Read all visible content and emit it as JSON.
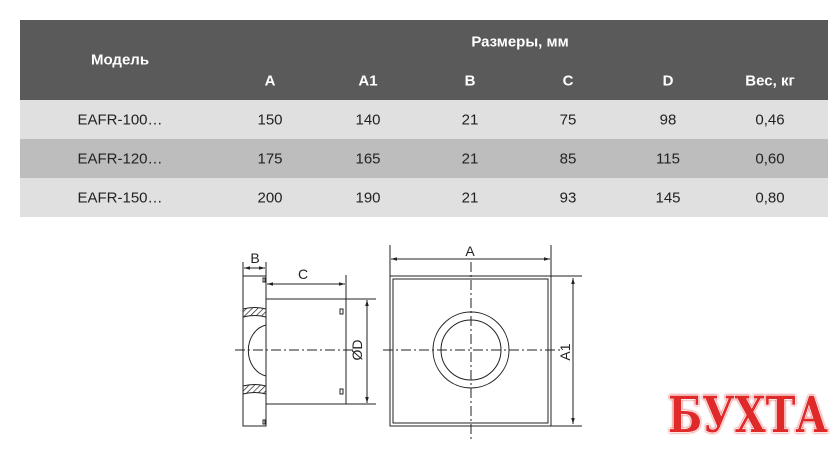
{
  "table": {
    "header": {
      "model": "Модель",
      "group": "Размеры, мм",
      "cols": [
        "A",
        "A1",
        "B",
        "C",
        "D",
        "Вес, кг"
      ]
    },
    "rows": [
      [
        "EAFR-100…",
        "150",
        "140",
        "21",
        "75",
        "98",
        "0,46"
      ],
      [
        "EAFR-120…",
        "175",
        "165",
        "21",
        "85",
        "115",
        "0,60"
      ],
      [
        "EAFR-150…",
        "200",
        "190",
        "21",
        "93",
        "145",
        "0,80"
      ]
    ]
  },
  "drawing": {
    "labels": {
      "b": "B",
      "c": "C",
      "d": "ØD",
      "a": "A",
      "a1": "A1"
    }
  },
  "logo": {
    "text": "БУХТА",
    "color": "#e02a2a"
  }
}
